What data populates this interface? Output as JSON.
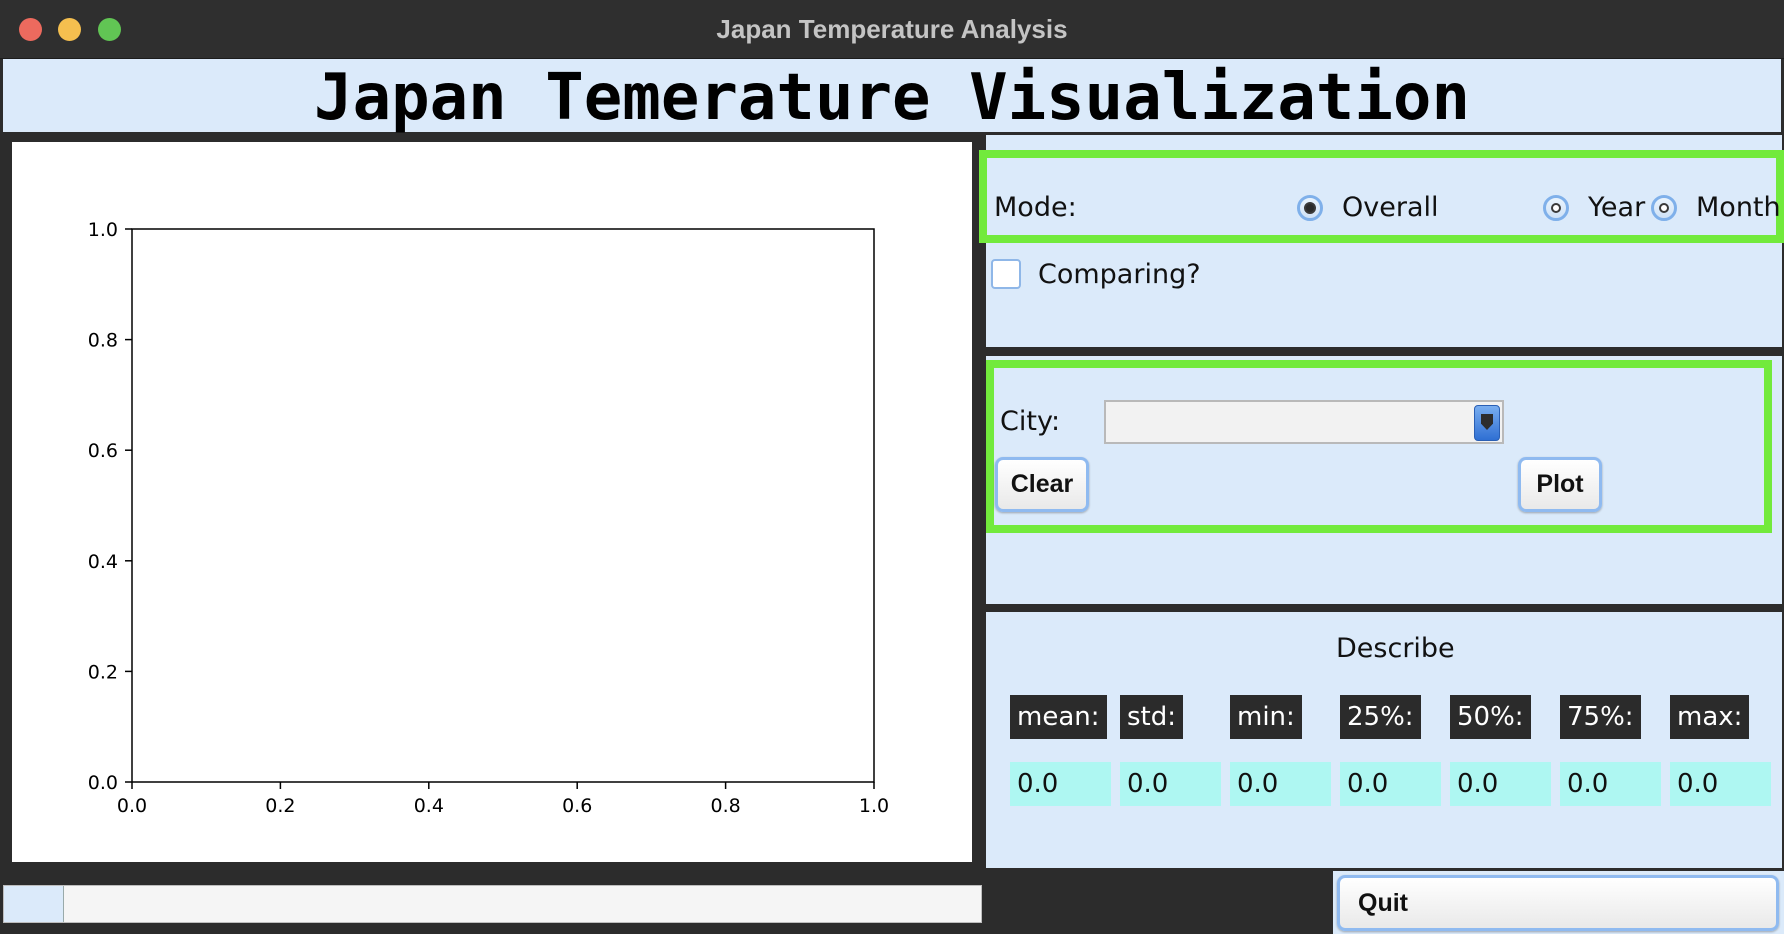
{
  "window": {
    "title": "Japan Temperature Analysis"
  },
  "header": {
    "title": "Japan Temerature Visualization"
  },
  "plot": {
    "chart_data": {
      "type": "line",
      "title": "",
      "xlabel": "",
      "ylabel": "",
      "xlim": [
        0.0,
        1.0
      ],
      "ylim": [
        0.0,
        1.0
      ],
      "x_ticks": [
        "0.0",
        "0.2",
        "0.4",
        "0.6",
        "0.8",
        "1.0"
      ],
      "y_ticks": [
        "0.0",
        "0.2",
        "0.4",
        "0.6",
        "0.8",
        "1.0"
      ],
      "series": [],
      "grid": false
    }
  },
  "progress": {
    "value": 0.06
  },
  "mode": {
    "label": "Mode:",
    "options": [
      {
        "label": "Overall",
        "checked": true
      },
      {
        "label": "Year",
        "checked": false
      },
      {
        "label": "Month",
        "checked": false
      }
    ],
    "comparing_label": "Comparing?",
    "comparing_checked": false
  },
  "city": {
    "label": "City:",
    "selected": "",
    "clear_label": "Clear",
    "plot_label": "Plot"
  },
  "describe": {
    "title": "Describe",
    "stats": [
      {
        "key": "mean:",
        "value": "0.0"
      },
      {
        "key": "std:",
        "value": "0.0"
      },
      {
        "key": "min:",
        "value": "0.0"
      },
      {
        "key": "25%:",
        "value": "0.0"
      },
      {
        "key": "50%:",
        "value": "0.0"
      },
      {
        "key": "75%:",
        "value": "0.0"
      },
      {
        "key": "max:",
        "value": "0.0"
      }
    ]
  },
  "footer": {
    "quit_label": "Quit"
  },
  "colors": {
    "panel_bg": "#dbeafa",
    "highlight": "#72ea3c",
    "stat_key_bg": "#2b2b2b",
    "stat_value_bg": "#aef7f2"
  }
}
